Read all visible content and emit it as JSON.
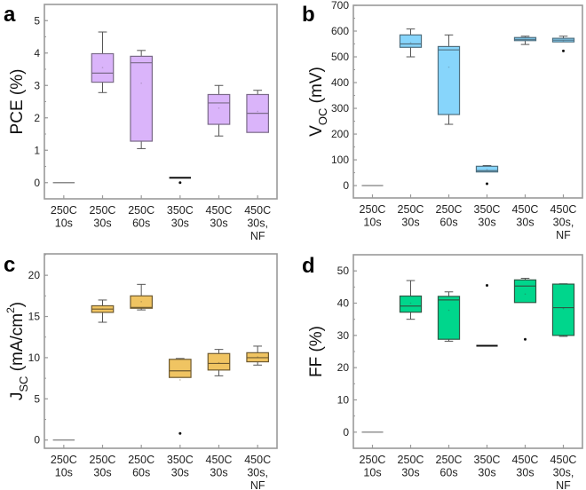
{
  "chart_data": [
    {
      "type": "box",
      "panel": "a",
      "ylabel_parts": [
        {
          "t": "PCE (%)"
        }
      ],
      "ylim": [
        -0.5,
        5.5
      ],
      "yticks": [
        0,
        1,
        2,
        3,
        4,
        5
      ],
      "minor_step": 0.5,
      "color": "#dab4fa",
      "edge": "#7a6a88",
      "categories": [
        [
          "250C",
          "10s"
        ],
        [
          "250C",
          "30s"
        ],
        [
          "250C",
          "60s"
        ],
        [
          "350C",
          "30s"
        ],
        [
          "450C",
          "30s"
        ],
        [
          "450C",
          "30s,",
          "NF"
        ]
      ],
      "boxes": [
        {
          "wlo": 0,
          "q1": 0,
          "med": 0,
          "q3": 0,
          "whi": 0,
          "mean": 0,
          "outliers": []
        },
        {
          "wlo": 2.78,
          "q1": 3.1,
          "med": 3.38,
          "q3": 3.98,
          "whi": 4.65,
          "mean": 3.55,
          "outliers": []
        },
        {
          "wlo": 1.05,
          "q1": 1.28,
          "med": 3.7,
          "q3": 3.9,
          "whi": 4.08,
          "mean": 3.07,
          "outliers": []
        },
        {
          "wlo": 0.15,
          "q1": 0.14,
          "med": 0.15,
          "q3": 0.16,
          "whi": 0.16,
          "mean": 0.12,
          "outliers": [
            0.0
          ]
        },
        {
          "wlo": 1.44,
          "q1": 1.8,
          "med": 2.46,
          "q3": 2.72,
          "whi": 3.0,
          "mean": 2.3,
          "outliers": []
        },
        {
          "wlo": 1.55,
          "q1": 1.55,
          "med": 2.14,
          "q3": 2.72,
          "whi": 2.85,
          "mean": 2.2,
          "outliers": []
        }
      ]
    },
    {
      "type": "box",
      "panel": "b",
      "ylabel_parts": [
        {
          "t": "V"
        },
        {
          "t": "OC",
          "sub": true
        },
        {
          "t": " (mV)"
        }
      ],
      "ylim": [
        -48,
        700
      ],
      "yticks": [
        0,
        100,
        200,
        300,
        400,
        500,
        600,
        700
      ],
      "minor_step": 50,
      "color": "#87d5fb",
      "edge": "#4f6f7f",
      "categories": [
        [
          "250C",
          "10s"
        ],
        [
          "250C",
          "30s"
        ],
        [
          "250C",
          "60s"
        ],
        [
          "350C",
          "30s"
        ],
        [
          "450C",
          "30s"
        ],
        [
          "450C",
          "30s,",
          "NF"
        ]
      ],
      "boxes": [
        {
          "wlo": 0,
          "q1": 0,
          "med": 0,
          "q3": 0,
          "whi": 0,
          "mean": 0,
          "outliers": []
        },
        {
          "wlo": 500,
          "q1": 537,
          "med": 550,
          "q3": 585,
          "whi": 608,
          "mean": 555,
          "outliers": []
        },
        {
          "wlo": 238,
          "q1": 276,
          "med": 527,
          "q3": 540,
          "whi": 585,
          "mean": 460,
          "outliers": []
        },
        {
          "wlo": 53,
          "q1": 53,
          "med": 58,
          "q3": 75,
          "whi": 78,
          "mean": 62,
          "outliers": [
            7
          ]
        },
        {
          "wlo": 548,
          "q1": 563,
          "med": 568,
          "q3": 575,
          "whi": 580,
          "mean": 568,
          "outliers": []
        },
        {
          "wlo": 558,
          "q1": 558,
          "med": 565,
          "q3": 572,
          "whi": 580,
          "mean": 562,
          "outliers": [
            523
          ]
        }
      ]
    },
    {
      "type": "box",
      "panel": "c",
      "ylabel_parts": [
        {
          "t": "J"
        },
        {
          "t": "SC",
          "sub": true
        },
        {
          "t": " (mA/cm"
        },
        {
          "t": "2",
          "sup": true
        },
        {
          "t": ")"
        }
      ],
      "ylim": [
        -1,
        22.6
      ],
      "yticks": [
        0,
        5,
        10,
        15,
        20
      ],
      "minor_step": 2.5,
      "color": "#f0c462",
      "edge": "#6e5a30",
      "categories": [
        [
          "250C",
          "10s"
        ],
        [
          "250C",
          "30s"
        ],
        [
          "250C",
          "60s"
        ],
        [
          "350C",
          "30s"
        ],
        [
          "450C",
          "30s"
        ],
        [
          "450C",
          "30s,",
          "NF"
        ]
      ],
      "boxes": [
        {
          "wlo": 0,
          "q1": 0,
          "med": 0,
          "q3": 0,
          "whi": 0,
          "mean": 0,
          "outliers": []
        },
        {
          "wlo": 14.3,
          "q1": 15.5,
          "med": 15.9,
          "q3": 16.3,
          "whi": 17.0,
          "mean": 15.9,
          "outliers": []
        },
        {
          "wlo": 15.8,
          "q1": 16.0,
          "med": 16.1,
          "q3": 17.5,
          "whi": 18.9,
          "mean": 16.8,
          "outliers": []
        },
        {
          "wlo": 7.6,
          "q1": 7.6,
          "med": 8.4,
          "q3": 9.8,
          "whi": 9.9,
          "mean": 7.3,
          "outliers": [
            0.8
          ]
        },
        {
          "wlo": 7.8,
          "q1": 8.5,
          "med": 9.3,
          "q3": 10.5,
          "whi": 11.0,
          "mean": 9.4,
          "outliers": []
        },
        {
          "wlo": 9.1,
          "q1": 9.5,
          "med": 10.0,
          "q3": 10.6,
          "whi": 11.4,
          "mean": 10.1,
          "outliers": []
        }
      ]
    },
    {
      "type": "box",
      "panel": "d",
      "ylabel_parts": [
        {
          "t": "FF (%)"
        }
      ],
      "ylim": [
        -5,
        55
      ],
      "yticks": [
        0,
        10,
        20,
        30,
        40,
        50
      ],
      "minor_step": 5,
      "color": "#00d68c",
      "edge": "#2d5a45",
      "categories": [
        [
          "250C",
          "10s"
        ],
        [
          "250C",
          "30s"
        ],
        [
          "250C",
          "60s"
        ],
        [
          "350C",
          "30s"
        ],
        [
          "450C",
          "30s"
        ],
        [
          "450C",
          "30s,",
          "NF"
        ]
      ],
      "boxes": [
        {
          "wlo": 0,
          "q1": 0,
          "med": 0,
          "q3": 0,
          "whi": 0,
          "mean": 0,
          "outliers": []
        },
        {
          "wlo": 35,
          "q1": 37.2,
          "med": 39.1,
          "q3": 42.2,
          "whi": 47,
          "mean": 40,
          "outliers": []
        },
        {
          "wlo": 28.2,
          "q1": 28.8,
          "med": 41,
          "q3": 42.1,
          "whi": 43.5,
          "mean": 37.8,
          "outliers": []
        },
        {
          "wlo": 26.8,
          "q1": 26.7,
          "med": 26.8,
          "q3": 26.9,
          "whi": 26.9,
          "mean": 30.5,
          "outliers": [
            45.5
          ]
        },
        {
          "wlo": 40.2,
          "q1": 40.2,
          "med": 45.3,
          "q3": 47.2,
          "whi": 47.7,
          "mean": 42.8,
          "outliers": [
            28.8
          ]
        },
        {
          "wlo": 29.7,
          "q1": 30,
          "med": 38.6,
          "q3": 45.9,
          "whi": 46,
          "mean": 38.3,
          "outliers": []
        }
      ]
    }
  ]
}
